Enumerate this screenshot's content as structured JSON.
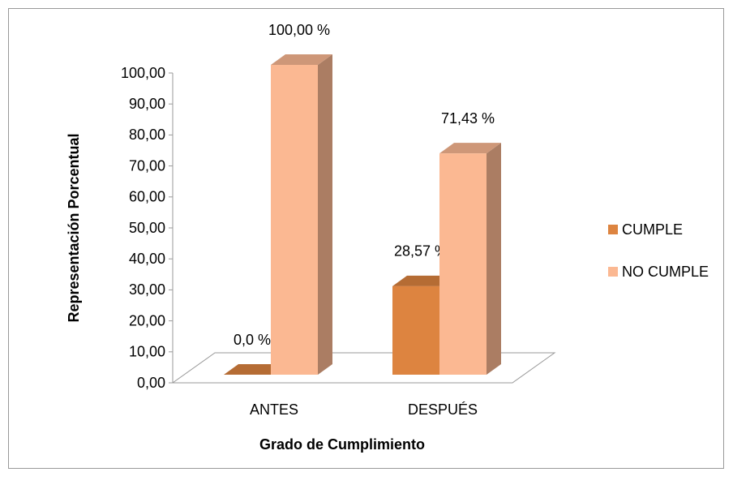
{
  "chart_data": {
    "type": "bar3d",
    "x_label": "Grado de Cumplimiento",
    "y_label": "Representación Porcentual",
    "categories": [
      "ANTES",
      "DESPUÉS"
    ],
    "series": [
      {
        "name": "CUMPLE",
        "color": "#dd8440",
        "values": [
          0,
          28.57
        ],
        "value_labels": [
          "0,0 %",
          "28,57 %"
        ]
      },
      {
        "name": "NO CUMPLE",
        "color": "#fbb892",
        "values": [
          100,
          71.43
        ],
        "value_labels": [
          "100,00 %",
          "71,43 %"
        ]
      }
    ],
    "ylim": [
      0,
      100
    ],
    "yticks": [
      {
        "value": 0,
        "label": "0,00"
      },
      {
        "value": 10,
        "label": "10,00"
      },
      {
        "value": 20,
        "label": "20,00"
      },
      {
        "value": 30,
        "label": "30,00"
      },
      {
        "value": 40,
        "label": "40,00"
      },
      {
        "value": 50,
        "label": "50,00"
      },
      {
        "value": 60,
        "label": "60,00"
      },
      {
        "value": 70,
        "label": "70,00"
      },
      {
        "value": 80,
        "label": "80,00"
      },
      {
        "value": 90,
        "label": "90,00"
      },
      {
        "value": 100,
        "label": "100,00"
      }
    ],
    "legend": "right"
  }
}
